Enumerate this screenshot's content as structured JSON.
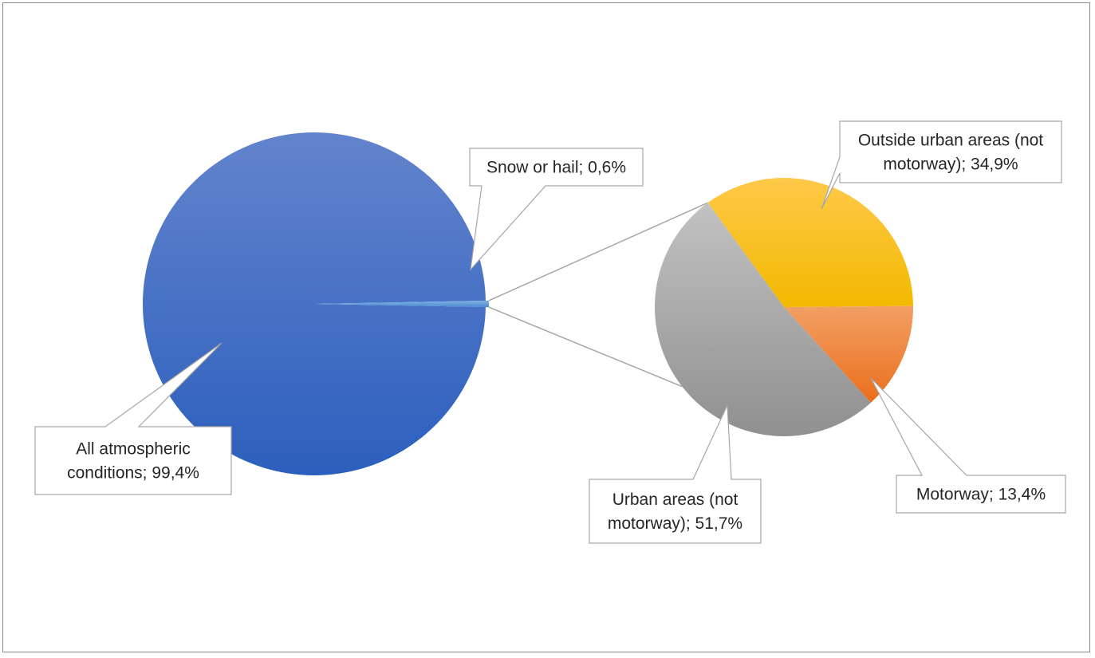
{
  "chart_data": {
    "type": "pie",
    "title": "",
    "subtitle": "",
    "main_pie": {
      "slices": [
        {
          "label": "All atmospheric conditions",
          "value": 99.4,
          "display": "All atmospheric conditions; 99,4%",
          "label_lines": [
            "All atmospheric",
            "conditions; 99,4%"
          ],
          "color": "#3f6fc9"
        },
        {
          "label": "Snow or hail",
          "value": 0.6,
          "display": "Snow or hail; 0,6%",
          "label_lines": [
            "Snow or hail; 0,6%"
          ],
          "color": "#5b9bd5"
        }
      ]
    },
    "secondary_pie": {
      "of_slice": "Snow or hail",
      "slices": [
        {
          "label": "Outside urban areas (not motorway)",
          "value": 34.9,
          "display": "Outside urban areas (not motorway); 34,9%",
          "label_lines": [
            "Outside urban areas (not",
            "motorway); 34,9%"
          ],
          "color": "#ffc000"
        },
        {
          "label": "Motorway",
          "value": 13.4,
          "display": "Motorway; 13,4%",
          "label_lines": [
            "Motorway; 13,4%"
          ],
          "color": "#ed7d31"
        },
        {
          "label": "Urban areas (not motorway)",
          "value": 51.7,
          "display": "Urban areas (not motorway); 51,7%",
          "label_lines": [
            "Urban areas (not",
            "motorway); 51,7%"
          ],
          "color": "#a5a5a5"
        }
      ]
    },
    "legend": "none",
    "grid": false
  }
}
